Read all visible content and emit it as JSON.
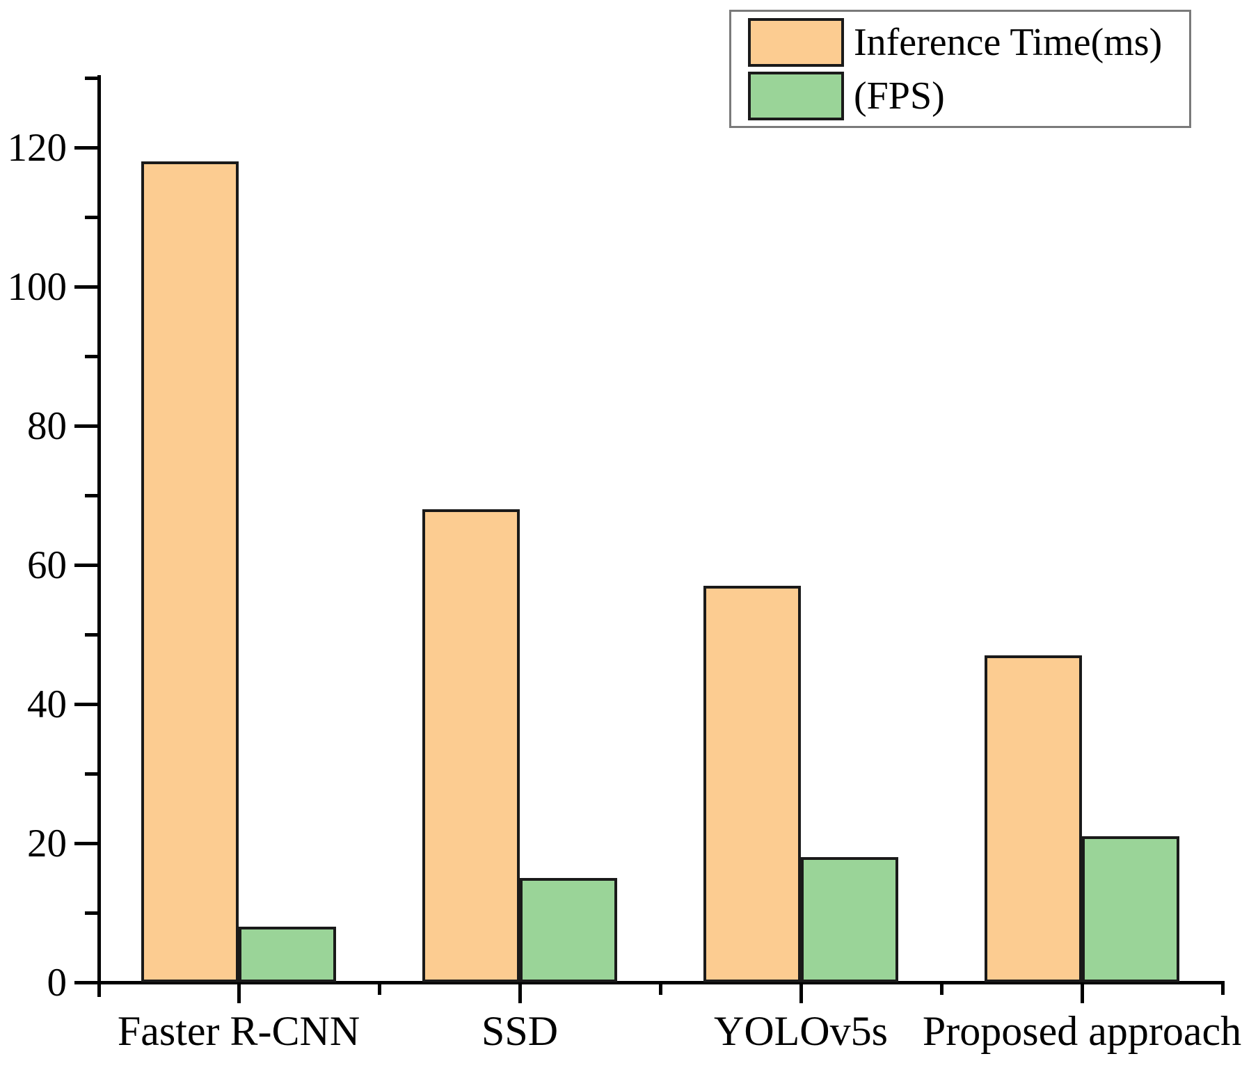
{
  "chart_data": {
    "type": "bar",
    "title": "",
    "xlabel": "",
    "ylabel": "",
    "categories": [
      "Faster R-CNN",
      "SSD",
      "YOLOv5s",
      "Proposed approach"
    ],
    "series": [
      {
        "name": "Inference Time(ms)",
        "color": "#fccc91",
        "values": [
          118,
          68,
          57,
          47
        ]
      },
      {
        "name": "(FPS)",
        "color": "#9ad498",
        "values": [
          8,
          15,
          18,
          21
        ]
      }
    ],
    "ylim": [
      0,
      130
    ],
    "y_major_ticks": [
      0,
      20,
      40,
      60,
      80,
      100,
      120
    ],
    "y_minor_ticks": [
      10,
      30,
      50,
      70,
      90,
      110,
      130
    ],
    "grid": false,
    "legend_position": "top-right",
    "bar_border_color": "#1a1a1a",
    "axis_color": "#000000"
  }
}
